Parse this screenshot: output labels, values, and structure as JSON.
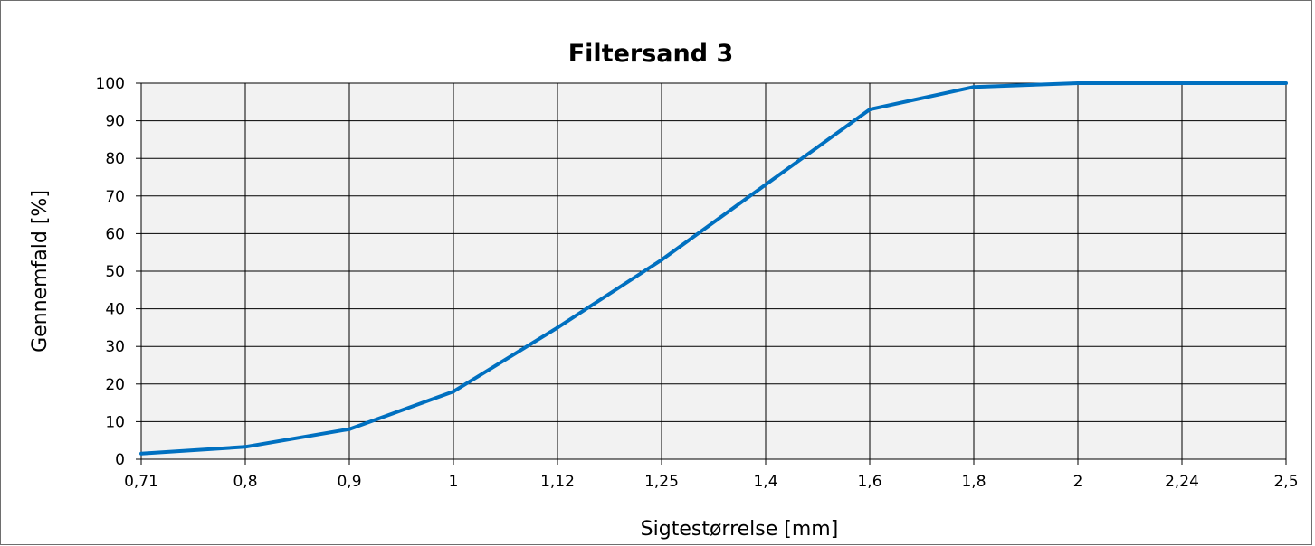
{
  "chart_data": {
    "type": "line",
    "title": "Filtersand 3",
    "xlabel": "Sigtestørrelse [mm]",
    "ylabel": "Gennemfald [%]",
    "categories": [
      "0,71",
      "0,8",
      "0,9",
      "1",
      "1,12",
      "1,25",
      "1,4",
      "1,6",
      "1,8",
      "2",
      "2,24",
      "2,5"
    ],
    "y_ticks": [
      "0",
      "10",
      "20",
      "30",
      "40",
      "50",
      "60",
      "70",
      "80",
      "90",
      "100"
    ],
    "ylim": [
      0,
      100
    ],
    "grid": true,
    "plot_background": "#f2f2f2",
    "series": [
      {
        "color": "#0070c0",
        "values": [
          1.5,
          3.3,
          8,
          18,
          35,
          53,
          73,
          93,
          99,
          100,
          100,
          100
        ]
      }
    ]
  }
}
